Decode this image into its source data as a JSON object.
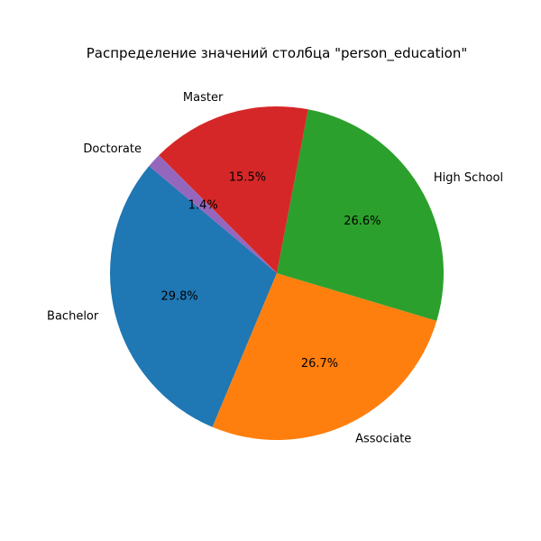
{
  "chart_data": {
    "type": "pie",
    "title": "Распределение значений столбца \"person_education\"",
    "start_angle_deg": 140,
    "counterclock": true,
    "slices": [
      {
        "label": "Bachelor",
        "value": 29.8,
        "pct_text": "29.8%",
        "color": "#1f77b4"
      },
      {
        "label": "Associate",
        "value": 26.7,
        "pct_text": "26.7%",
        "color": "#ff7f0e"
      },
      {
        "label": "High School",
        "value": 26.6,
        "pct_text": "26.6%",
        "color": "#2ca02c"
      },
      {
        "label": "Master",
        "value": 15.5,
        "pct_text": "15.5%",
        "color": "#d62728"
      },
      {
        "label": "Doctorate",
        "value": 1.4,
        "pct_text": "1.4%",
        "color": "#9467bd"
      }
    ]
  }
}
